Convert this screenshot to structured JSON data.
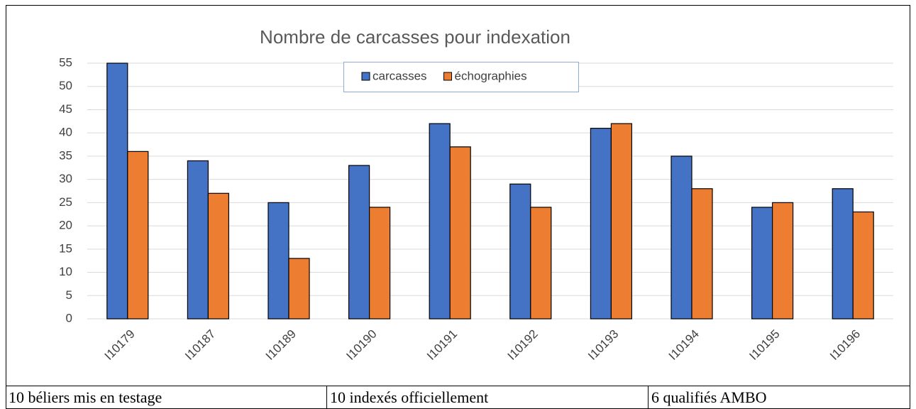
{
  "chart_data": {
    "type": "bar",
    "title": "Nombre de carcasses pour indexation",
    "categories": [
      "I10179",
      "I10187",
      "I10189",
      "I10190",
      "I10191",
      "I10192",
      "I10193",
      "I10194",
      "I10195",
      "I10196"
    ],
    "series": [
      {
        "name": "carcasses",
        "color": "#4472c4",
        "values": [
          55,
          34,
          25,
          33,
          42,
          29,
          41,
          35,
          24,
          28
        ]
      },
      {
        "name": "échographies",
        "color": "#ed7d31",
        "values": [
          36,
          27,
          13,
          24,
          37,
          24,
          42,
          28,
          25,
          23
        ]
      }
    ],
    "ylim": [
      0,
      55
    ],
    "yticks": [
      0,
      5,
      10,
      15,
      20,
      25,
      30,
      35,
      40,
      45,
      50,
      55
    ],
    "grid": true,
    "legend": "top"
  },
  "footer": [
    "10 béliers mis en testage",
    "10 indexés officiellement",
    "6 qualifiés AMBO"
  ]
}
